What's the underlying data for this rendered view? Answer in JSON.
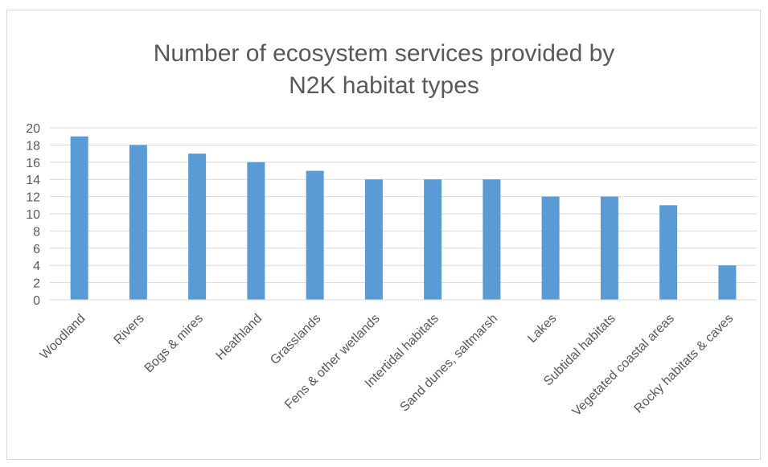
{
  "chart_data": {
    "type": "bar",
    "title": "Number of ecosystem services provided by N2K habitat types",
    "xlabel": "",
    "ylabel": "",
    "ylim": [
      0,
      20
    ],
    "yticks": [
      0,
      2,
      4,
      6,
      8,
      10,
      12,
      14,
      16,
      18,
      20
    ],
    "grid": true,
    "legend": "none",
    "bar_color": "#5b9bd5",
    "categories": [
      "Woodland",
      "Rivers",
      "Bogs & mires",
      "Heathland",
      "Grasslands",
      "Fens & other wetlands",
      "Intertidal habitats",
      "Sand dunes, saltmarsh",
      "Lakes",
      "Subtidal habitats",
      "Vegetated coastal areas",
      "Rocky habitats & caves"
    ],
    "values": [
      19,
      18,
      17,
      16,
      15,
      14,
      14,
      14,
      12,
      12,
      11,
      4
    ]
  }
}
